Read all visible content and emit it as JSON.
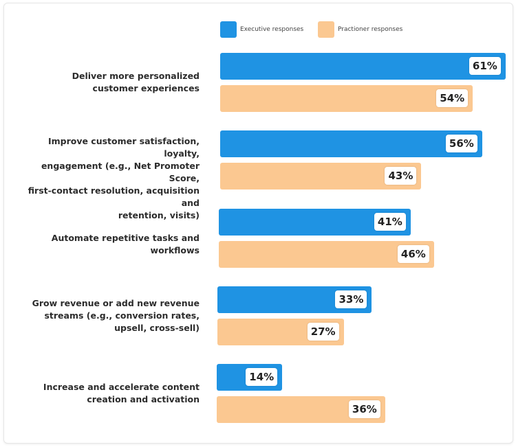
{
  "chart_data": {
    "type": "bar",
    "orientation": "horizontal",
    "categories": [
      "Deliver more personalized customer experiences",
      "Improve customer satisfaction, loyalty, engagement (e.g., Net Promoter Score, first-contact resolution, acquisition and retention, visits)",
      "Automate repetitive tasks and workflows",
      "Grow revenue or add new revenue streams (e.g., conversion rates, upsell, cross-sell)",
      "Increase and accelerate content creation and activation"
    ],
    "series": [
      {
        "name": "Executive responses",
        "color": "#1f93e3",
        "values": [
          61,
          56,
          41,
          33,
          14
        ]
      },
      {
        "name": "Practioner responses",
        "color": "#fbc891",
        "values": [
          54,
          43,
          46,
          27,
          36
        ]
      }
    ],
    "value_suffix": "%",
    "legend": "top",
    "grid": false
  }
}
